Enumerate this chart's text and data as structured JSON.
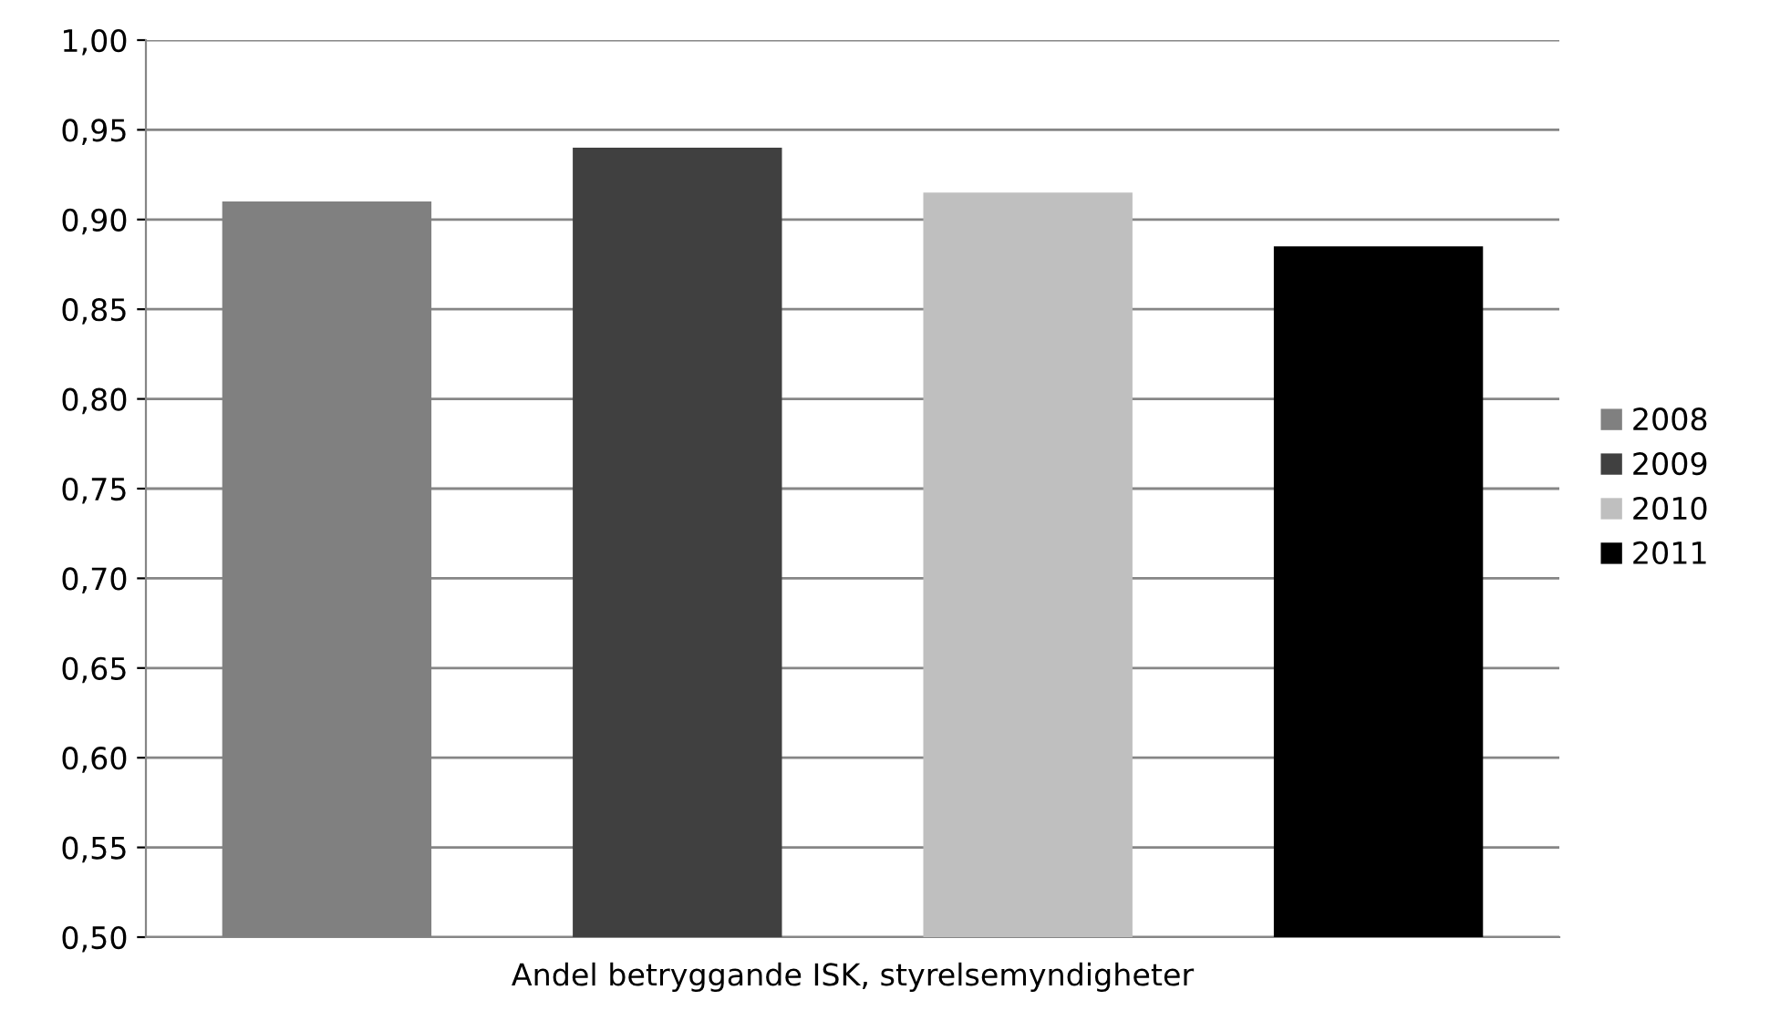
{
  "chart_data": {
    "type": "bar",
    "categories": [
      "Andel betryggande ISK, styrelsemyndigheter"
    ],
    "series": [
      {
        "name": "2008",
        "color": "#808080",
        "values": [
          0.91
        ]
      },
      {
        "name": "2009",
        "color": "#404040",
        "values": [
          0.94
        ]
      },
      {
        "name": "2010",
        "color": "#bfbfbf",
        "values": [
          0.915
        ]
      },
      {
        "name": "2011",
        "color": "#000000",
        "values": [
          0.885
        ]
      }
    ],
    "ylim": [
      0.5,
      1.0
    ],
    "yticks": [
      {
        "value": 0.5,
        "label": "0,50"
      },
      {
        "value": 0.55,
        "label": "0,55"
      },
      {
        "value": 0.6,
        "label": "0,60"
      },
      {
        "value": 0.65,
        "label": "0,65"
      },
      {
        "value": 0.7,
        "label": "0,70"
      },
      {
        "value": 0.75,
        "label": "0,75"
      },
      {
        "value": 0.8,
        "label": "0,80"
      },
      {
        "value": 0.85,
        "label": "0,85"
      },
      {
        "value": 0.9,
        "label": "0,90"
      },
      {
        "value": 0.95,
        "label": "0,95"
      },
      {
        "value": 1.0,
        "label": "1,00"
      }
    ],
    "grid": "y",
    "legend": "right"
  }
}
